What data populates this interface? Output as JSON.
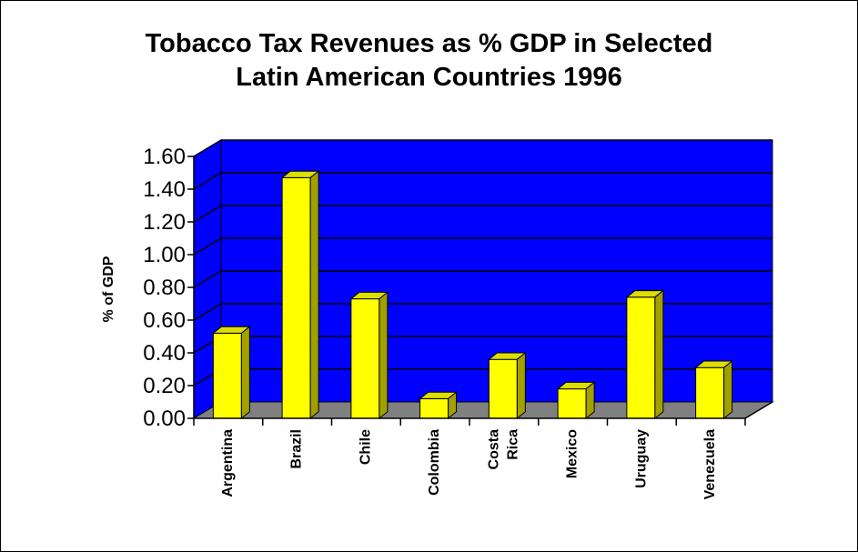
{
  "chart_data": {
    "type": "bar",
    "title_line1": "Tobacco Tax Revenues as % GDP in Selected",
    "title_line2": "Latin American Countries 1996",
    "xlabel": "",
    "ylabel": "% of GDP",
    "ylim": [
      0,
      1.6
    ],
    "yticks": [
      "0.00",
      "0.20",
      "0.40",
      "0.60",
      "0.80",
      "1.00",
      "1.20",
      "1.40",
      "1.60"
    ],
    "categories": [
      [
        "Argentina"
      ],
      [
        "Brazil"
      ],
      [
        "Chile"
      ],
      [
        "Colombia"
      ],
      [
        "Costa",
        "Rica"
      ],
      [
        "Mexico"
      ],
      [
        "Uruguay"
      ],
      [
        "Venezuela"
      ]
    ],
    "values": [
      0.52,
      1.47,
      0.73,
      0.12,
      0.36,
      0.18,
      0.74,
      0.31
    ],
    "grid": true,
    "legend": "none",
    "colors": {
      "plot_background": "#0000ff",
      "bar": "#ffff00",
      "floor": "#808080",
      "gridline": "#000000"
    }
  }
}
